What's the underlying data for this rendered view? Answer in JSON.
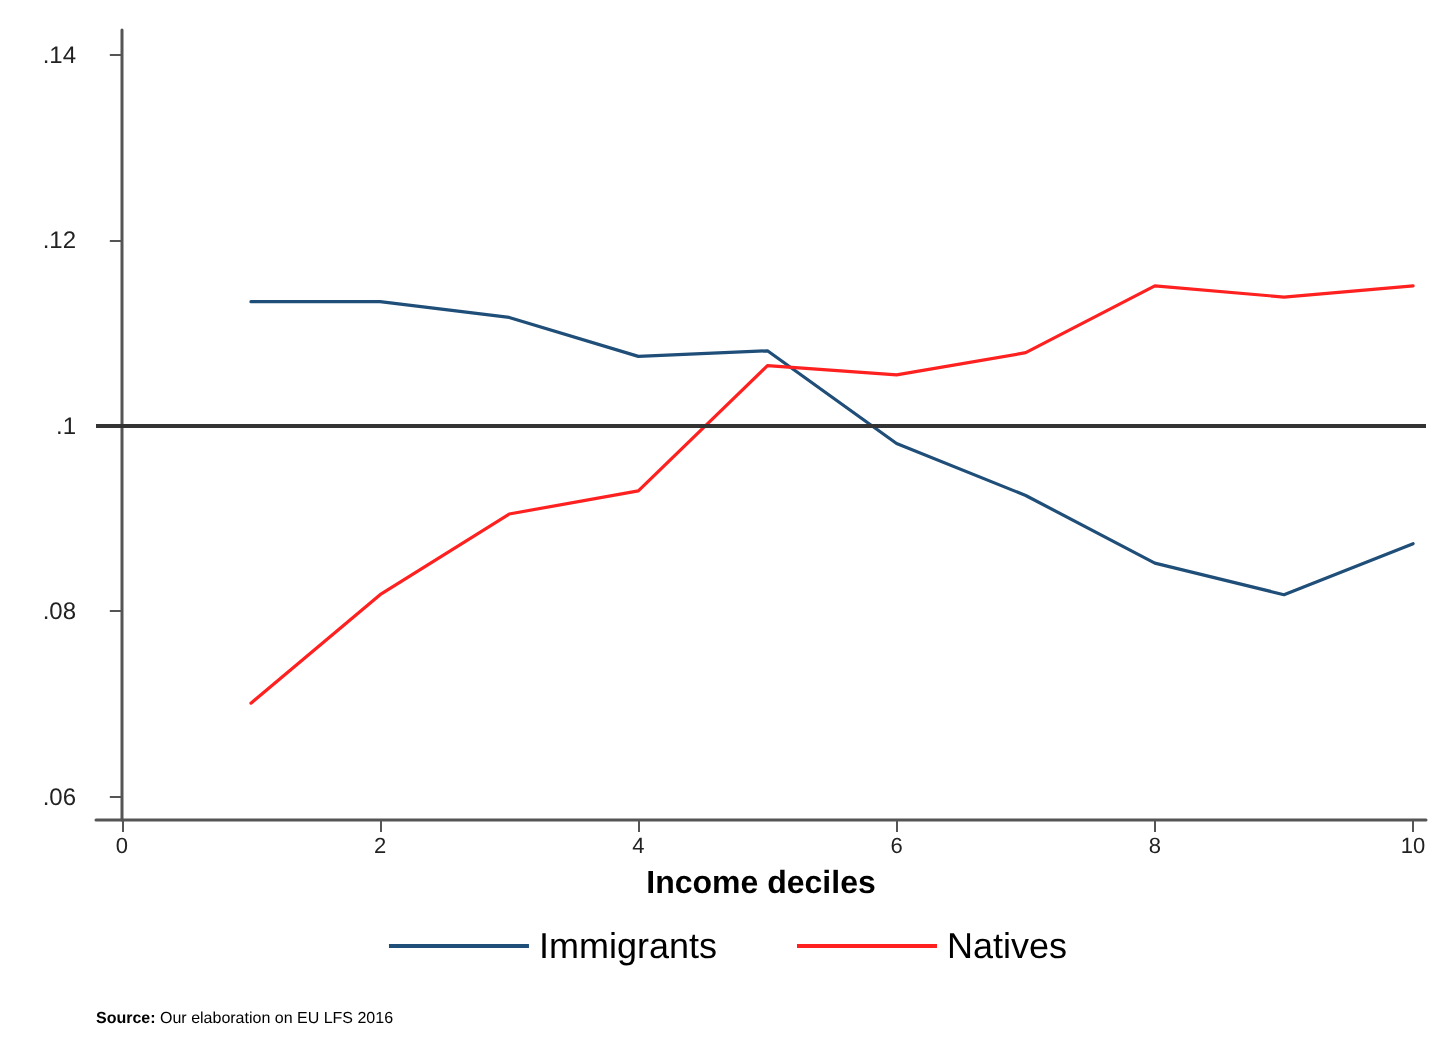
{
  "chart_data": {
    "type": "line",
    "xlabel": "Income deciles",
    "x": [
      1,
      2,
      3,
      4,
      5,
      6,
      7,
      8,
      9,
      10
    ],
    "series": [
      {
        "name": "Immigrants",
        "color": "#1f4e79",
        "values": [
          0.1134,
          0.1134,
          0.1117,
          0.1075,
          0.1081,
          0.0981,
          0.0925,
          0.0852,
          0.0818,
          0.0873
        ]
      },
      {
        "name": "Natives",
        "color": "#ff2020",
        "values": [
          0.0701,
          0.0818,
          0.0905,
          0.093,
          0.1065,
          0.1055,
          0.1079,
          0.1151,
          0.1139,
          0.1151
        ]
      }
    ],
    "xlim": [
      -0.2,
      10.1
    ],
    "xticks": [
      0,
      2,
      4,
      6,
      8,
      10
    ],
    "ylim": [
      0.0575,
      0.1427
    ],
    "yticks": [
      {
        "value": 0.06,
        "label": ".06"
      },
      {
        "value": 0.08,
        "label": ".08"
      },
      {
        "value": 0.1,
        "label": ".1"
      },
      {
        "value": 0.12,
        "label": ".12"
      },
      {
        "value": 0.14,
        "label": ".14"
      }
    ],
    "ref_lines": [
      {
        "axis": "y",
        "value": 0.1,
        "color": "#333333"
      }
    ],
    "grid": false,
    "legend": "bottom",
    "marker": "none",
    "annotations": [
      "Source: Our elaboration on EU LFS 2016"
    ]
  }
}
